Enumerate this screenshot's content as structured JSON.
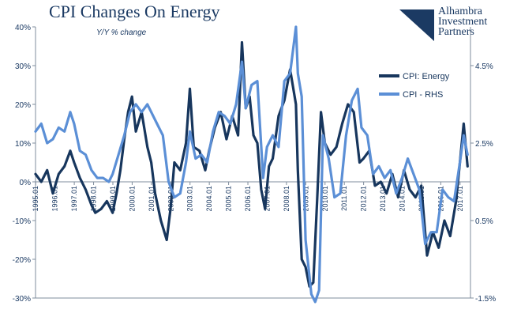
{
  "header": {
    "title": "CPI Changes On Energy",
    "subtitle": "Y/Y % change"
  },
  "logo": {
    "lines": [
      "Alhambra",
      "Investment",
      "Partners"
    ],
    "color": "#1b3a63"
  },
  "chart_data": {
    "type": "line",
    "title": "CPI Changes On Energy",
    "subtitle": "Y/Y % change",
    "x_ticks": [
      "1995.01",
      "1996.01",
      "1997.01",
      "1998.01",
      "1999.01",
      "2000.01",
      "2001.01",
      "2002.01",
      "2003.01",
      "2004.01",
      "2005.01",
      "2006.01",
      "2007.01",
      "2008.01",
      "2009.01",
      "2010.01",
      "2011.01",
      "2012.01",
      "2013.01",
      "2014.01",
      "2015.01",
      "2016.01",
      "2017.01"
    ],
    "y_left": {
      "ticks": [
        "40%",
        "30%",
        "20%",
        "10%",
        "0%",
        "-10%",
        "-20%",
        "-30%"
      ],
      "values": [
        40,
        30,
        20,
        10,
        0,
        -10,
        -20,
        -30
      ],
      "range": [
        -30,
        40
      ]
    },
    "y_right": {
      "ticks": [
        "4.5%",
        "2.5%",
        "0.5%",
        "-1.5%"
      ],
      "values": [
        4.5,
        2.5,
        0.5,
        -1.5
      ],
      "range": [
        -1.5,
        5.5
      ]
    },
    "grid": false,
    "legend_position": "right",
    "series": [
      {
        "name": "CPI: Energy",
        "axis": "left",
        "color": "#17365d",
        "x": [
          1995.0,
          1995.3,
          1995.6,
          1995.9,
          1996.2,
          1996.5,
          1996.8,
          1997.0,
          1997.3,
          1997.6,
          1997.9,
          1998.1,
          1998.4,
          1998.7,
          1999.0,
          1999.2,
          1999.4,
          1999.6,
          1999.8,
          2000.0,
          2000.2,
          2000.5,
          2000.8,
          2001.0,
          2001.2,
          2001.5,
          2001.8,
          2002.0,
          2002.2,
          2002.5,
          2002.8,
          2003.0,
          2003.2,
          2003.5,
          2003.8,
          2004.0,
          2004.3,
          2004.6,
          2004.9,
          2005.2,
          2005.5,
          2005.7,
          2005.9,
          2006.1,
          2006.3,
          2006.5,
          2006.7,
          2006.9,
          2007.1,
          2007.3,
          2007.6,
          2007.9,
          2008.2,
          2008.5,
          2008.6,
          2008.8,
          2009.0,
          2009.2,
          2009.4,
          2009.6,
          2009.8,
          2010.0,
          2010.3,
          2010.6,
          2010.9,
          2011.2,
          2011.5,
          2011.8,
          2012.0,
          2012.3,
          2012.6,
          2012.9,
          2013.2,
          2013.5,
          2013.8,
          2014.1,
          2014.4,
          2014.7,
          2015.0,
          2015.3,
          2015.6,
          2015.9,
          2016.2,
          2016.5,
          2016.8,
          2017.0,
          2017.2,
          2017.4
        ],
        "values": [
          2,
          0,
          3,
          -3,
          2,
          4,
          8,
          5,
          1,
          -2,
          -6,
          -8,
          -7,
          -5,
          -8,
          -3,
          3,
          11,
          18,
          22,
          13,
          18,
          9,
          5,
          -3,
          -10,
          -15,
          -7,
          5,
          3,
          10,
          24,
          9,
          8,
          3,
          8,
          14,
          18,
          11,
          17,
          12,
          36,
          19,
          22,
          12,
          10,
          -2,
          -7,
          4,
          6,
          17,
          21,
          29,
          20,
          3,
          -20,
          -22,
          -27,
          -26,
          -5,
          18,
          10,
          7,
          9,
          15,
          20,
          18,
          5,
          6,
          8,
          -1,
          0,
          -3,
          2,
          -4,
          3,
          -2,
          -4,
          -1,
          -19,
          -13,
          -17,
          -10,
          -14,
          -5,
          5,
          15,
          4
        ]
      },
      {
        "name": "CPI - RHS",
        "axis": "right",
        "color": "#5b8fd6",
        "x": [
          1995.0,
          1995.3,
          1995.6,
          1995.9,
          1996.2,
          1996.5,
          1996.8,
          1997.0,
          1997.3,
          1997.6,
          1997.9,
          1998.2,
          1998.5,
          1998.8,
          1999.0,
          1999.3,
          1999.6,
          1999.9,
          2000.2,
          2000.5,
          2000.8,
          2001.0,
          2001.3,
          2001.6,
          2001.9,
          2002.2,
          2002.5,
          2002.8,
          2003.0,
          2003.3,
          2003.6,
          2003.9,
          2004.2,
          2004.5,
          2004.8,
          2005.1,
          2005.4,
          2005.7,
          2005.9,
          2006.2,
          2006.5,
          2006.8,
          2007.0,
          2007.3,
          2007.6,
          2007.9,
          2008.2,
          2008.5,
          2008.6,
          2008.8,
          2009.0,
          2009.3,
          2009.5,
          2009.7,
          2009.9,
          2010.2,
          2010.5,
          2010.8,
          2011.1,
          2011.4,
          2011.7,
          2011.9,
          2012.2,
          2012.5,
          2012.8,
          2013.1,
          2013.4,
          2013.7,
          2014.0,
          2014.3,
          2014.6,
          2014.9,
          2015.2,
          2015.5,
          2015.8,
          2016.1,
          2016.4,
          2016.7,
          2017.0,
          2017.2,
          2017.4
        ],
        "values": [
          2.8,
          3.0,
          2.5,
          2.6,
          2.9,
          2.8,
          3.3,
          3.0,
          2.3,
          2.2,
          1.8,
          1.6,
          1.6,
          1.5,
          1.7,
          2.2,
          2.7,
          3.3,
          3.5,
          3.3,
          3.5,
          3.3,
          3.0,
          2.7,
          1.5,
          1.1,
          1.2,
          2.0,
          2.8,
          2.1,
          2.2,
          2.0,
          2.8,
          3.3,
          3.2,
          3.0,
          3.5,
          4.6,
          3.4,
          4.0,
          4.1,
          1.6,
          2.4,
          2.7,
          2.4,
          4.1,
          4.3,
          5.5,
          4.3,
          3.7,
          0.0,
          -1.4,
          -1.6,
          -1.3,
          2.7,
          2.1,
          1.1,
          1.2,
          2.7,
          3.6,
          3.9,
          2.9,
          2.7,
          1.7,
          1.9,
          1.6,
          1.8,
          1.2,
          1.6,
          2.1,
          1.7,
          1.3,
          -0.1,
          0.2,
          0.2,
          1.3,
          1.1,
          1.0,
          2.0,
          2.7,
          2.2
        ]
      }
    ]
  }
}
